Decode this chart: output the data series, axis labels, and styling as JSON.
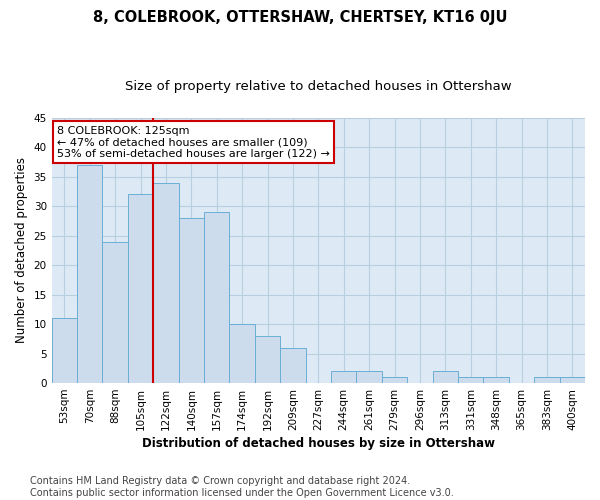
{
  "title": "8, COLEBROOK, OTTERSHAW, CHERTSEY, KT16 0JU",
  "subtitle": "Size of property relative to detached houses in Ottershaw",
  "xlabel": "Distribution of detached houses by size in Ottershaw",
  "ylabel": "Number of detached properties",
  "bin_labels": [
    "53sqm",
    "70sqm",
    "88sqm",
    "105sqm",
    "122sqm",
    "140sqm",
    "157sqm",
    "174sqm",
    "192sqm",
    "209sqm",
    "227sqm",
    "244sqm",
    "261sqm",
    "279sqm",
    "296sqm",
    "313sqm",
    "331sqm",
    "348sqm",
    "365sqm",
    "383sqm",
    "400sqm"
  ],
  "bar_heights": [
    11,
    37,
    24,
    32,
    34,
    28,
    29,
    10,
    8,
    6,
    0,
    2,
    2,
    1,
    0,
    2,
    1,
    1,
    0,
    1,
    1
  ],
  "bar_color": "#ccdcec",
  "bar_edge_color": "#6baed6",
  "vline_color": "#cc0000",
  "vline_x_index": 4,
  "annotation_text_line1": "8 COLEBROOK: 125sqm",
  "annotation_text_line2": "← 47% of detached houses are smaller (109)",
  "annotation_text_line3": "53% of semi-detached houses are larger (122) →",
  "annotation_box_facecolor": "#ffffff",
  "annotation_box_edgecolor": "#cc0000",
  "ylim": [
    0,
    45
  ],
  "yticks": [
    0,
    5,
    10,
    15,
    20,
    25,
    30,
    35,
    40,
    45
  ],
  "grid_color": "#b8cfe0",
  "plot_bg_color": "#ddeaf5",
  "footer_text": "Contains HM Land Registry data © Crown copyright and database right 2024.\nContains public sector information licensed under the Open Government Licence v3.0.",
  "title_fontsize": 10.5,
  "subtitle_fontsize": 9.5,
  "xlabel_fontsize": 8.5,
  "ylabel_fontsize": 8.5,
  "tick_fontsize": 7.5,
  "footer_fontsize": 7,
  "annotation_fontsize": 8
}
